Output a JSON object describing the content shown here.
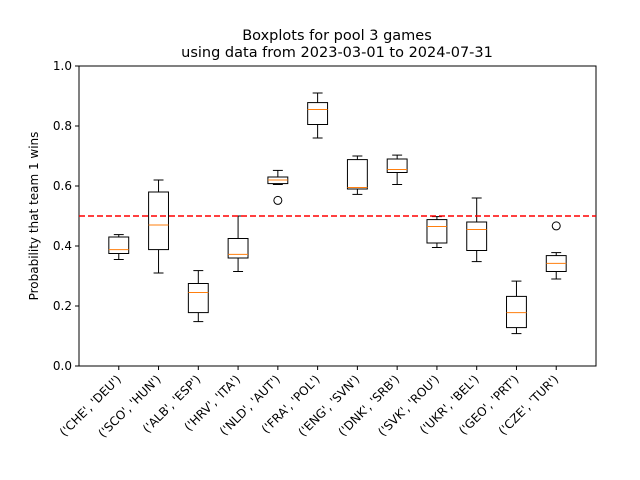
{
  "chart_data": {
    "type": "boxplot",
    "title_lines": [
      "Boxplots for pool 3 games",
      "using data from 2023-03-01 to 2024-07-31"
    ],
    "xlabel": "",
    "ylabel": "Probability that team 1 wins",
    "ylim": [
      0.0,
      1.0
    ],
    "yticks": [
      "0.0",
      "0.2",
      "0.4",
      "0.6",
      "0.8",
      "1.0"
    ],
    "reference_line": {
      "y": 0.5,
      "style": "dashed",
      "color": "#ff0000"
    },
    "colors": {
      "box": "#000000",
      "median": "#ff7f0e",
      "reference": "#ff0000"
    },
    "grid": false,
    "categories": [
      "('CHE', 'DEU')",
      "('SCO', 'HUN')",
      "('ALB', 'ESP')",
      "('HRV', 'ITA')",
      "('NLD', 'AUT')",
      "('FRA', 'POL')",
      "('ENG', 'SVN')",
      "('DNK', 'SRB')",
      "('SVK', 'ROU')",
      "('UKR', 'BEL')",
      "('GEO', 'PRT')",
      "('CZE', 'TUR')"
    ],
    "boxes": [
      {
        "whislo": 0.355,
        "q1": 0.375,
        "med": 0.388,
        "q3": 0.43,
        "whishi": 0.438,
        "fliers": []
      },
      {
        "whislo": 0.31,
        "q1": 0.388,
        "med": 0.47,
        "q3": 0.58,
        "whishi": 0.62,
        "fliers": []
      },
      {
        "whislo": 0.148,
        "q1": 0.178,
        "med": 0.245,
        "q3": 0.275,
        "whishi": 0.318,
        "fliers": []
      },
      {
        "whislo": 0.315,
        "q1": 0.36,
        "med": 0.372,
        "q3": 0.425,
        "whishi": 0.5,
        "fliers": []
      },
      {
        "whislo": 0.605,
        "q1": 0.608,
        "med": 0.62,
        "q3": 0.63,
        "whishi": 0.652,
        "fliers": [
          0.552
        ]
      },
      {
        "whislo": 0.76,
        "q1": 0.805,
        "med": 0.855,
        "q3": 0.878,
        "whishi": 0.91,
        "fliers": []
      },
      {
        "whislo": 0.572,
        "q1": 0.59,
        "med": 0.595,
        "q3": 0.688,
        "whishi": 0.7,
        "fliers": []
      },
      {
        "whislo": 0.605,
        "q1": 0.645,
        "med": 0.655,
        "q3": 0.69,
        "whishi": 0.703,
        "fliers": []
      },
      {
        "whislo": 0.395,
        "q1": 0.41,
        "med": 0.465,
        "q3": 0.488,
        "whishi": 0.498,
        "fliers": []
      },
      {
        "whislo": 0.348,
        "q1": 0.385,
        "med": 0.455,
        "q3": 0.48,
        "whishi": 0.56,
        "fliers": []
      },
      {
        "whislo": 0.108,
        "q1": 0.128,
        "med": 0.178,
        "q3": 0.232,
        "whishi": 0.283,
        "fliers": []
      },
      {
        "whislo": 0.29,
        "q1": 0.315,
        "med": 0.342,
        "q3": 0.368,
        "whishi": 0.378,
        "fliers": [
          0.467
        ]
      }
    ]
  }
}
